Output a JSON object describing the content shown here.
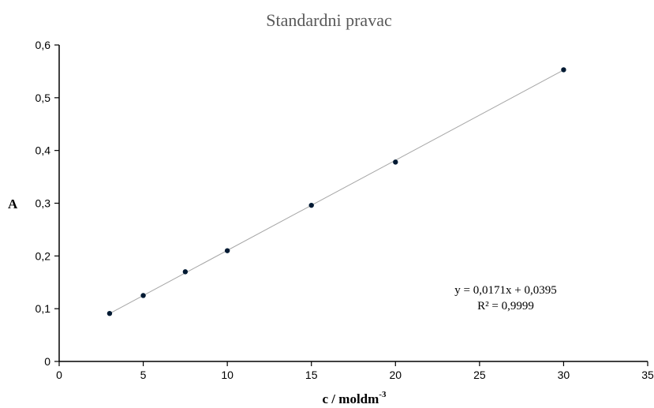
{
  "chart_data": {
    "type": "scatter",
    "title": "Standardni pravac",
    "xlabel": "c / moldm",
    "xlabel_sup": "-3",
    "ylabel": "A",
    "xlim": [
      0,
      35
    ],
    "ylim": [
      0,
      0.6
    ],
    "x_ticks": [
      "0",
      "5",
      "10",
      "15",
      "20",
      "25",
      "30",
      "35"
    ],
    "y_ticks": [
      "0",
      "0,1",
      "0,2",
      "0,3",
      "0,4",
      "0,5",
      "0,6"
    ],
    "grid": false,
    "series": [
      {
        "x": [
          3,
          5,
          7.5,
          10,
          15,
          20,
          30
        ],
        "y": [
          0.091,
          0.125,
          0.17,
          0.21,
          0.296,
          0.378,
          0.553
        ]
      }
    ],
    "trendline": {
      "type": "linear",
      "slope": 0.0171,
      "intercept": 0.0395,
      "x_range": [
        3,
        30
      ]
    },
    "equation_text": "y = 0,0171x + 0,0395",
    "r2_text": "R² = 0,9999",
    "colors": {
      "marker": "#001a33",
      "trendline": "#a6a6a6",
      "axis": "#000000",
      "title": "#595959"
    }
  }
}
